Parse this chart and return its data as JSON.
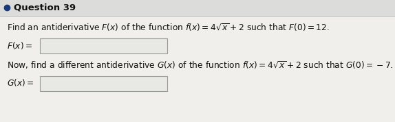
{
  "title": "Question 39",
  "line1": "Find an antiderivative $F(x)$ of the function $f(x) = 4\\sqrt{x} + 2$ such that $F(0) = 12$.",
  "label1": "$F(x) = $",
  "line2": "Now, find a different antiderivative $G(x)$ of the function $f(x) = 4\\sqrt{x} + 2$ such that $G(0) = -7$.",
  "label2": "$G(x) = $",
  "bg_color": "#e8e8e8",
  "content_bg": "#f0f0ee",
  "text_color": "#111111",
  "box_color": "#e8e8e4",
  "box_edge_color": "#999999",
  "bullet_color": "#1a3a7a",
  "title_fontsize": 9.5,
  "body_fontsize": 8.8,
  "label_fontsize": 8.8
}
